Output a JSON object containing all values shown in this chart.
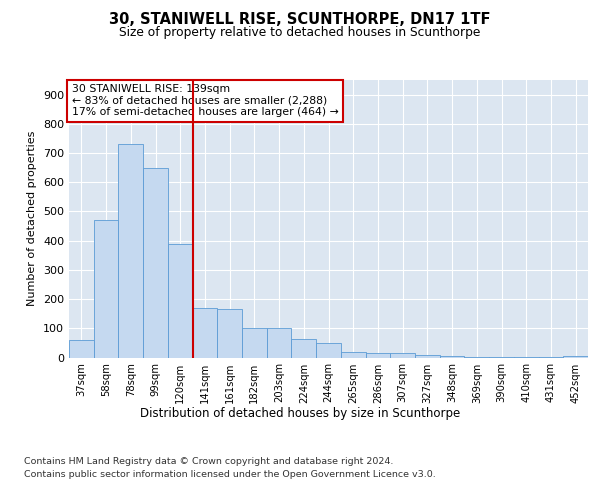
{
  "title": "30, STANIWELL RISE, SCUNTHORPE, DN17 1TF",
  "subtitle": "Size of property relative to detached houses in Scunthorpe",
  "xlabel": "Distribution of detached houses by size in Scunthorpe",
  "ylabel": "Number of detached properties",
  "bar_color": "#c5d9f0",
  "bar_edge_color": "#5b9bd5",
  "plot_bg_color": "#dce6f1",
  "categories": [
    "37sqm",
    "58sqm",
    "78sqm",
    "99sqm",
    "120sqm",
    "141sqm",
    "161sqm",
    "182sqm",
    "203sqm",
    "224sqm",
    "244sqm",
    "265sqm",
    "286sqm",
    "307sqm",
    "327sqm",
    "348sqm",
    "369sqm",
    "390sqm",
    "410sqm",
    "431sqm",
    "452sqm"
  ],
  "values": [
    60,
    470,
    730,
    650,
    390,
    170,
    165,
    100,
    100,
    65,
    50,
    20,
    15,
    15,
    8,
    5,
    3,
    2,
    1,
    1,
    5
  ],
  "ylim": [
    0,
    950
  ],
  "yticks": [
    0,
    100,
    200,
    300,
    400,
    500,
    600,
    700,
    800,
    900
  ],
  "vline_position": 5.0,
  "vline_color": "#cc0000",
  "annotation_text": "30 STANIWELL RISE: 139sqm\n← 83% of detached houses are smaller (2,288)\n17% of semi-detached houses are larger (464) →",
  "annotation_box_color": "white",
  "annotation_box_edge_color": "#cc0000",
  "footer_line1": "Contains HM Land Registry data © Crown copyright and database right 2024.",
  "footer_line2": "Contains public sector information licensed under the Open Government Licence v3.0."
}
